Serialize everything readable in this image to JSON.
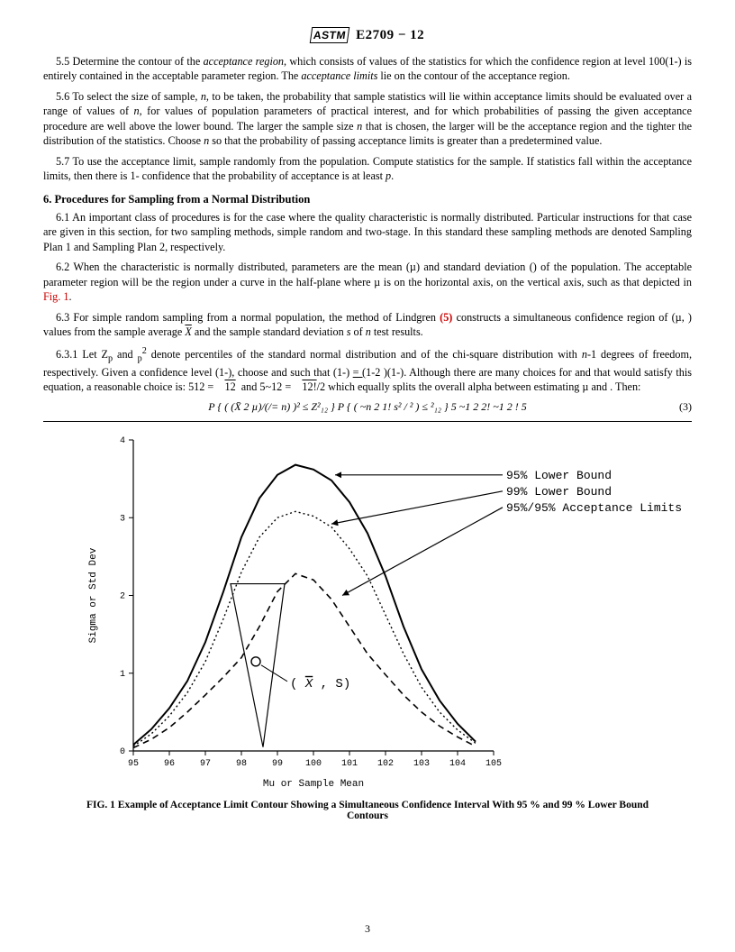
{
  "header": {
    "logo": "ASTM",
    "designation": "E2709 − 12"
  },
  "paras": {
    "p55": "5.5 Determine the contour of the acceptance region, which consists of values of the statistics for which the confidence region at level 100(1-) is entirely contained in the acceptable parameter region. The acceptance limits lie on the contour of the acceptance region.",
    "p56": "5.6 To select the size of sample, n, to be taken, the probability that sample statistics will lie within acceptance limits should be evaluated over a range of values of n, for values of population parameters of practical interest, and for which probabilities of passing the given acceptance procedure are well above the lower bound. The larger the sample size n that is chosen, the larger will be the acceptance region and the tighter the distribution of the statistics. Choose n so that the probability of passing acceptance limits is greater than a predetermined value.",
    "p57": "5.7 To use the acceptance limit, sample randomly from the population. Compute statistics for the sample. If statistics fall within the acceptance limits, then there is 1- confidence that the probability of acceptance is at least p.",
    "h6": "6.  Procedures for Sampling from a Normal Distribution",
    "p61": "6.1 An important class of procedures is for the case where the quality characteristic is normally distributed. Particular instructions for that case are given in this section, for two sampling methods, simple random and two-stage. In this standard these sampling methods are denoted Sampling Plan 1 and Sampling Plan 2, respectively.",
    "p62a": "6.2 When the characteristic is normally distributed, parameters are the mean (µ) and standard deviation () of the population. The acceptable parameter region will be the region under a curve in the half-plane where µ is on the horizontal axis,  on the vertical axis, such as that depicted in ",
    "p62b": "Fig. 1",
    "p62c": ".",
    "p63a": "6.3 For simple random sampling from a normal population, the method of Lindgren ",
    "p63b": "(5)",
    "p63c": " constructs a simultaneous confidence region of (µ, ) values from the sample average X̄ and the sample standard deviation s of n test results.",
    "p631": "6.3.1 Let Zₚ and ₚ² denote percentiles of the standard normal distribution and of the chi-square distribution with n-1 degrees of freedom, respectively. Given a confidence level (1-), choose  and  such that (1-) = (1-2 )(1-). Although there are many choices for  and  that would satisfy this equation, a reasonable choice is: 512 =      12  and 5~12 =      12!/2 which equally splits the overall alpha between estimating µ and . Then:",
    "eq": "P { ( (X̄ 2 µ)/(/=  n) )² ≤ Z²₁₂ } P { ( ~n 2 1! s² / ² ) ≤ ²₁₂ } 5 ~1 2 2! ~1 2 ! 5",
    "eqnum": "(3)"
  },
  "figure": {
    "caption": "FIG. 1 Example of Acceptance Limit Contour Showing a Simultaneous Confidence Interval With 95 % and 99 % Lower Bound Contours",
    "xlabel": "Mu or Sample Mean",
    "ylabel": "Sigma or Std Dev",
    "xlim": [
      95,
      105
    ],
    "ylim": [
      0,
      4
    ],
    "xticks": [
      95,
      96,
      97,
      98,
      99,
      100,
      101,
      102,
      103,
      104,
      105
    ],
    "yticks": [
      0,
      1,
      2,
      3,
      4
    ],
    "legend": {
      "l1": "95% Lower Bound",
      "l2": "99% Lower Bound",
      "l3": "95%/95% Acceptance Limits"
    },
    "point_label": "( X̄ , S)",
    "curves": {
      "solid": [
        [
          95,
          0.08
        ],
        [
          95.5,
          0.28
        ],
        [
          96,
          0.55
        ],
        [
          96.5,
          0.9
        ],
        [
          97,
          1.4
        ],
        [
          97.5,
          2.05
        ],
        [
          98,
          2.75
        ],
        [
          98.5,
          3.25
        ],
        [
          99,
          3.55
        ],
        [
          99.5,
          3.68
        ],
        [
          100,
          3.62
        ],
        [
          100.5,
          3.48
        ],
        [
          101,
          3.2
        ],
        [
          101.5,
          2.8
        ],
        [
          102,
          2.25
        ],
        [
          102.5,
          1.6
        ],
        [
          103,
          1.05
        ],
        [
          103.5,
          0.65
        ],
        [
          104,
          0.35
        ],
        [
          104.5,
          0.12
        ]
      ],
      "dotted": [
        [
          95,
          0.06
        ],
        [
          95.5,
          0.22
        ],
        [
          96,
          0.45
        ],
        [
          96.5,
          0.75
        ],
        [
          97,
          1.15
        ],
        [
          97.5,
          1.7
        ],
        [
          98,
          2.3
        ],
        [
          98.5,
          2.75
        ],
        [
          99,
          3.0
        ],
        [
          99.5,
          3.08
        ],
        [
          100,
          3.02
        ],
        [
          100.5,
          2.88
        ],
        [
          101,
          2.6
        ],
        [
          101.5,
          2.25
        ],
        [
          102,
          1.75
        ],
        [
          102.5,
          1.25
        ],
        [
          103,
          0.82
        ],
        [
          103.5,
          0.5
        ],
        [
          104,
          0.27
        ],
        [
          104.5,
          0.1
        ]
      ],
      "dashed": [
        [
          95,
          0.04
        ],
        [
          95.5,
          0.15
        ],
        [
          96,
          0.3
        ],
        [
          96.5,
          0.5
        ],
        [
          97,
          0.72
        ],
        [
          97.5,
          0.95
        ],
        [
          98,
          1.2
        ],
        [
          98.5,
          1.6
        ],
        [
          99,
          2.05
        ],
        [
          99.5,
          2.28
        ],
        [
          100,
          2.2
        ],
        [
          100.5,
          1.95
        ],
        [
          101,
          1.6
        ],
        [
          101.5,
          1.25
        ],
        [
          102,
          0.98
        ],
        [
          102.5,
          0.72
        ],
        [
          103,
          0.5
        ],
        [
          103.5,
          0.32
        ],
        [
          104,
          0.18
        ],
        [
          104.5,
          0.06
        ]
      ]
    },
    "triangle": [
      [
        97.7,
        2.15
      ],
      [
        99.2,
        2.15
      ],
      [
        98.6,
        0.05
      ]
    ],
    "sample_point": [
      98.4,
      1.15
    ],
    "colors": {
      "axis": "#000000",
      "bg": "#ffffff",
      "solid_stroke": "#000000",
      "dotted_stroke": "#000000",
      "dashed_stroke": "#000000"
    },
    "axis_fontsize": 10,
    "legend_fontsize": 13
  },
  "pagenum": "3"
}
